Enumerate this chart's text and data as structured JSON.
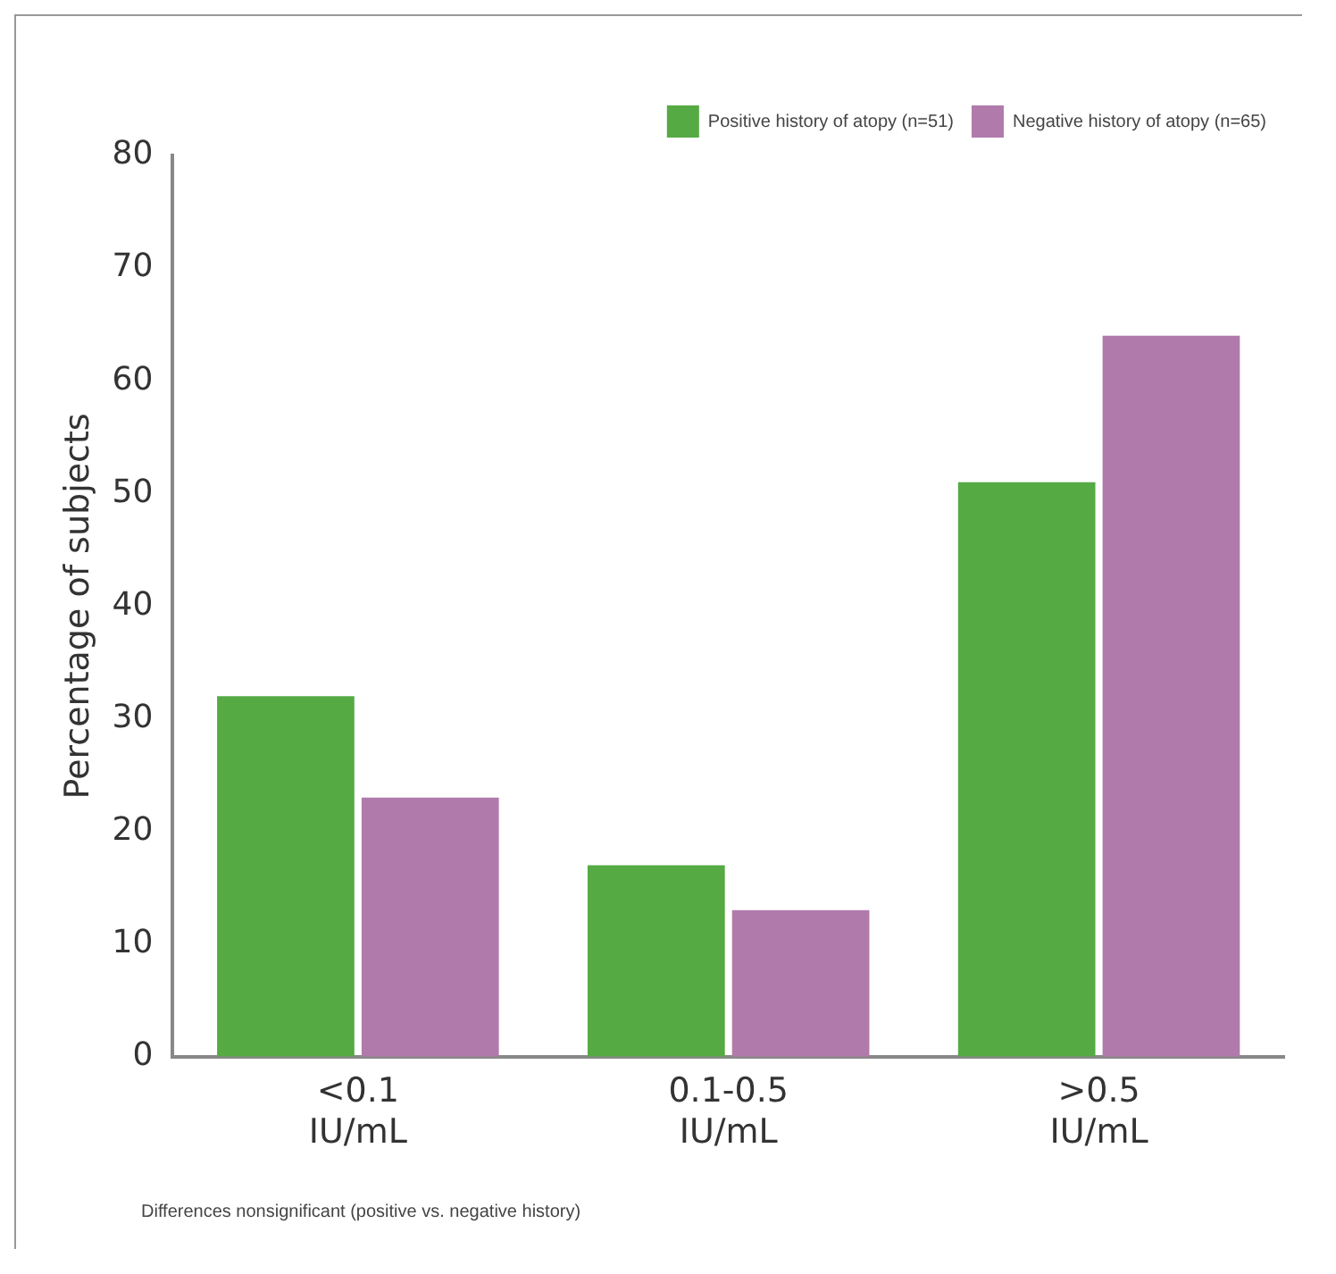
{
  "chart_data": {
    "type": "bar",
    "ylabel": "Percentage of subjects",
    "categories": [
      "<0.1 IU/mL",
      "0.1-0.5 IU/mL",
      ">0.5 IU/mL"
    ],
    "series": [
      {
        "name": "Positive history of atopy (n=51)",
        "color": "#55aa44",
        "values": [
          32,
          17,
          51
        ]
      },
      {
        "name": "Negative history of atopy (n=65)",
        "color": "#b07aab",
        "values": [
          23,
          13,
          64
        ]
      }
    ],
    "ylim": [
      0,
      80
    ],
    "yticks": [
      0,
      10,
      20,
      30,
      40,
      50,
      60,
      70,
      80
    ],
    "grid": false,
    "legend": "top right",
    "annotations": [
      "Differences nonsignificant (positive vs. negative history)"
    ]
  }
}
